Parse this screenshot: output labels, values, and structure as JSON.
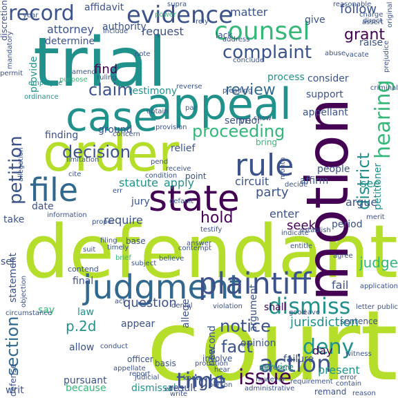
{
  "palette": {
    "purple": "#440154",
    "indigo": "#3b528b",
    "blue": "#31688e",
    "teal": "#21918c",
    "green": "#35b779",
    "lime": "#b5de2b"
  },
  "words": [
    {
      "text": "court",
      "color": "lime",
      "vertical": false
    },
    {
      "text": "defendant",
      "color": "lime",
      "vertical": false
    },
    {
      "text": "motion",
      "color": "purple",
      "vertical": true
    },
    {
      "text": "trial",
      "color": "teal",
      "vertical": false
    },
    {
      "text": "order",
      "color": "lime",
      "vertical": false
    },
    {
      "text": "appeal",
      "color": "teal",
      "vertical": false
    },
    {
      "text": "case",
      "color": "teal",
      "vertical": false
    },
    {
      "text": "judgment",
      "color": "blue",
      "vertical": false
    },
    {
      "text": "state",
      "color": "purple",
      "vertical": false
    },
    {
      "text": "file",
      "color": "blue",
      "vertical": false
    },
    {
      "text": "plaintiff",
      "color": "indigo",
      "vertical": false
    },
    {
      "text": "counsel",
      "color": "green",
      "vertical": false
    },
    {
      "text": "rule",
      "color": "indigo",
      "vertical": false
    },
    {
      "text": "evidence",
      "color": "indigo",
      "vertical": false
    },
    {
      "text": "hearing",
      "color": "green",
      "vertical": true
    },
    {
      "text": "record",
      "color": "indigo",
      "vertical": false
    },
    {
      "text": "petition",
      "color": "indigo",
      "vertical": true
    },
    {
      "text": "action",
      "color": "indigo",
      "vertical": false
    },
    {
      "text": "section",
      "color": "blue",
      "vertical": true
    },
    {
      "text": "dismiss",
      "color": "teal",
      "vertical": false
    },
    {
      "text": "issue",
      "color": "purple",
      "vertical": false
    },
    {
      "text": "time",
      "color": "indigo",
      "vertical": false
    },
    {
      "text": "deny",
      "color": "teal",
      "vertical": false
    },
    {
      "text": "complaint",
      "color": "indigo",
      "vertical": false
    },
    {
      "text": "district",
      "color": "teal",
      "vertical": true
    },
    {
      "text": "proceeding",
      "color": "green",
      "vertical": false
    },
    {
      "text": "decision",
      "color": "indigo",
      "vertical": false
    },
    {
      "text": "review",
      "color": "blue",
      "vertical": false
    },
    {
      "text": "claim",
      "color": "indigo",
      "vertical": false
    },
    {
      "text": "right",
      "color": "indigo",
      "vertical": false
    },
    {
      "text": "notice",
      "color": "indigo",
      "vertical": false
    },
    {
      "text": "fact",
      "color": "indigo",
      "vertical": false
    },
    {
      "text": "grant",
      "color": "purple",
      "vertical": false
    },
    {
      "text": "follow",
      "color": "indigo",
      "vertical": false
    },
    {
      "text": "party",
      "color": "indigo",
      "vertical": false
    },
    {
      "text": "hold",
      "color": "purple",
      "vertical": false
    },
    {
      "text": "question",
      "color": "indigo",
      "vertical": false
    },
    {
      "text": "jurisdiction",
      "color": "teal",
      "vertical": false
    },
    {
      "text": "matter",
      "color": "indigo",
      "vertical": false
    },
    {
      "text": "attorney",
      "color": "indigo",
      "vertical": false
    },
    {
      "text": "request",
      "color": "indigo",
      "vertical": false
    },
    {
      "text": "find",
      "color": "purple",
      "vertical": false
    },
    {
      "text": "statute",
      "color": "teal",
      "vertical": false
    },
    {
      "text": "apply",
      "color": "teal",
      "vertical": false
    },
    {
      "text": "circuit",
      "color": "indigo",
      "vertical": false
    },
    {
      "text": "see",
      "color": "teal",
      "vertical": false
    },
    {
      "text": "argue",
      "color": "indigo",
      "vertical": false
    },
    {
      "text": "enter",
      "color": "indigo",
      "vertical": false
    },
    {
      "text": "seek",
      "color": "purple",
      "vertical": false
    },
    {
      "text": "require",
      "color": "indigo",
      "vertical": false
    },
    {
      "text": "fail",
      "color": "indigo",
      "vertical": false
    },
    {
      "text": "present",
      "color": "teal",
      "vertical": false
    },
    {
      "text": "failure",
      "color": "indigo",
      "vertical": false
    },
    {
      "text": "p.2d",
      "color": "teal",
      "vertical": false
    },
    {
      "text": "allow",
      "color": "indigo",
      "vertical": false
    },
    {
      "text": "pursuant",
      "color": "indigo",
      "vertical": false
    },
    {
      "text": "because",
      "color": "green",
      "vertical": false
    },
    {
      "text": "dismissal",
      "color": "teal",
      "vertical": false
    },
    {
      "text": "result",
      "color": "indigo",
      "vertical": false
    },
    {
      "text": "opinion",
      "color": "indigo",
      "vertical": false
    },
    {
      "text": "day",
      "color": "purple",
      "vertical": false
    },
    {
      "text": "argument",
      "color": "indigo",
      "vertical": true
    },
    {
      "text": "shall",
      "color": "purple",
      "vertical": false
    },
    {
      "text": "service",
      "color": "green",
      "vertical": false
    },
    {
      "text": "support",
      "color": "indigo",
      "vertical": false
    },
    {
      "text": "appellant",
      "color": "indigo",
      "vertical": false
    },
    {
      "text": "process",
      "color": "teal",
      "vertical": false
    },
    {
      "text": "provide",
      "color": "teal",
      "vertical": true
    },
    {
      "text": "statement",
      "color": "indigo",
      "vertical": true
    },
    {
      "text": "set",
      "color": "indigo",
      "vertical": false
    },
    {
      "text": "say",
      "color": "green",
      "vertical": false
    },
    {
      "text": "appear",
      "color": "indigo",
      "vertical": false
    },
    {
      "text": "final",
      "color": "indigo",
      "vertical": false
    },
    {
      "text": "law",
      "color": "teal",
      "vertical": false
    },
    {
      "text": "date",
      "color": "indigo",
      "vertical": false
    },
    {
      "text": "period",
      "color": "indigo",
      "vertical": false
    },
    {
      "text": "take",
      "color": "indigo",
      "vertical": false
    },
    {
      "text": "jury",
      "color": "indigo",
      "vertical": false
    },
    {
      "text": "petitioner",
      "color": "teal",
      "vertical": true
    },
    {
      "text": "judge",
      "color": "green",
      "vertical": false
    },
    {
      "text": "raise",
      "color": "indigo",
      "vertical": false
    },
    {
      "text": "ground",
      "color": "indigo",
      "vertical": false
    },
    {
      "text": "relief",
      "color": "indigo",
      "vertical": false
    },
    {
      "text": "serve",
      "color": "indigo",
      "vertical": false
    },
    {
      "text": "prior",
      "color": "indigo",
      "vertical": false
    },
    {
      "text": "people",
      "color": "indigo",
      "vertical": false
    },
    {
      "text": "affirm",
      "color": "indigo",
      "vertical": false
    },
    {
      "text": "consider",
      "color": "indigo",
      "vertical": false
    },
    {
      "text": "authority",
      "color": "indigo",
      "vertical": false
    },
    {
      "text": "determine",
      "color": "indigo",
      "vertical": false
    },
    {
      "text": "give",
      "color": "indigo",
      "vertical": false
    },
    {
      "text": "affidavit",
      "color": "indigo",
      "vertical": false
    },
    {
      "text": "discretion",
      "color": "indigo",
      "vertical": true
    },
    {
      "text": "writ",
      "color": "indigo",
      "vertical": false
    },
    {
      "text": "defense",
      "color": "indigo",
      "vertical": true
    },
    {
      "text": "finding",
      "color": "indigo",
      "vertical": false
    },
    {
      "text": "base",
      "color": "indigo",
      "vertical": false
    },
    {
      "text": "testimony",
      "color": "teal",
      "vertical": false
    },
    {
      "text": "conduct",
      "color": "indigo",
      "vertical": false
    },
    {
      "text": "contend",
      "color": "indigo",
      "vertical": false
    },
    {
      "text": "remand",
      "color": "indigo",
      "vertical": false
    },
    {
      "text": "sentence",
      "color": "indigo",
      "vertical": false
    },
    {
      "text": "allege",
      "color": "indigo",
      "vertical": true
    },
    {
      "text": "second",
      "color": "indigo",
      "vertical": true
    },
    {
      "text": "new",
      "color": "indigo",
      "vertical": true
    },
    {
      "text": "point",
      "color": "indigo",
      "vertical": false
    },
    {
      "text": "basis",
      "color": "indigo",
      "vertical": false
    },
    {
      "text": "officer",
      "color": "indigo",
      "vertical": false
    },
    {
      "text": "agree",
      "color": "indigo",
      "vertical": false
    },
    {
      "text": "good",
      "color": "indigo",
      "vertical": false
    },
    {
      "text": "leave",
      "color": "indigo",
      "vertical": false
    },
    {
      "text": "involve",
      "color": "indigo",
      "vertical": false
    },
    {
      "text": "bring",
      "color": "green",
      "vertical": false
    },
    {
      "text": "brief",
      "color": "green",
      "vertical": false
    },
    {
      "text": "timely",
      "color": "indigo",
      "vertical": false
    },
    {
      "text": "subject",
      "color": "indigo",
      "vertical": false
    },
    {
      "text": "believe",
      "color": "indigo",
      "vertical": false
    },
    {
      "text": "answer",
      "color": "indigo",
      "vertical": false
    },
    {
      "text": "permit",
      "color": "indigo",
      "vertical": false
    },
    {
      "text": "note",
      "color": "indigo",
      "vertical": false
    },
    {
      "text": "amend",
      "color": "indigo",
      "vertical": false
    },
    {
      "text": "ruling",
      "color": "indigo",
      "vertical": false
    },
    {
      "text": "abuse",
      "color": "indigo",
      "vertical": false
    },
    {
      "text": "supra",
      "color": "indigo",
      "vertical": false
    },
    {
      "text": "lack",
      "color": "indigo",
      "vertical": false
    },
    {
      "text": "rely",
      "color": "indigo",
      "vertical": false
    },
    {
      "text": "address",
      "color": "indigo",
      "vertical": false
    },
    {
      "text": "conclude",
      "color": "indigo",
      "vertical": false
    },
    {
      "text": "charge",
      "color": "indigo",
      "vertical": false
    },
    {
      "text": "direct",
      "color": "indigo",
      "vertical": false
    },
    {
      "text": "assert",
      "color": "indigo",
      "vertical": false
    },
    {
      "text": "vacate",
      "color": "indigo",
      "vertical": false
    },
    {
      "text": "reasonable",
      "color": "indigo",
      "vertical": false
    },
    {
      "text": "year",
      "color": "indigo",
      "vertical": false
    },
    {
      "text": "power",
      "color": "green",
      "vertical": false
    },
    {
      "text": "include",
      "color": "indigo",
      "vertical": false
    },
    {
      "text": "purpose",
      "color": "green",
      "vertical": false
    },
    {
      "text": "employee",
      "color": "teal",
      "vertical": false
    },
    {
      "text": "ordinance",
      "color": "teal",
      "vertical": false
    },
    {
      "text": "pleading",
      "color": "indigo",
      "vertical": false
    },
    {
      "text": "reverse",
      "color": "indigo",
      "vertical": false
    },
    {
      "text": "show",
      "color": "indigo",
      "vertical": false
    },
    {
      "text": "obtain",
      "color": "indigo",
      "vertical": false
    },
    {
      "text": "provision",
      "color": "indigo",
      "vertical": false
    },
    {
      "text": "concern",
      "color": "indigo",
      "vertical": false
    },
    {
      "text": "limitation",
      "color": "indigo",
      "vertical": false
    },
    {
      "text": "cite",
      "color": "indigo",
      "vertical": false
    },
    {
      "text": "pend",
      "color": "indigo",
      "vertical": false
    },
    {
      "text": "condition",
      "color": "indigo",
      "vertical": false
    },
    {
      "text": "err",
      "color": "indigo",
      "vertical": false
    },
    {
      "text": "receive",
      "color": "indigo",
      "vertical": false
    },
    {
      "text": "default",
      "color": "indigo",
      "vertical": false
    },
    {
      "text": "decide",
      "color": "indigo",
      "vertical": false
    },
    {
      "text": "merit",
      "color": "indigo",
      "vertical": false
    },
    {
      "text": "indicate",
      "color": "indigo",
      "vertical": false
    },
    {
      "text": "information",
      "color": "indigo",
      "vertical": false
    },
    {
      "text": "filing",
      "color": "indigo",
      "vertical": false
    },
    {
      "text": "testify",
      "color": "indigo",
      "vertical": false
    },
    {
      "text": "entitle",
      "color": "indigo",
      "vertical": false
    },
    {
      "text": "establish",
      "color": "indigo",
      "vertical": false
    },
    {
      "text": "proper",
      "color": "indigo",
      "vertical": false
    },
    {
      "text": "suit",
      "color": "indigo",
      "vertical": false
    },
    {
      "text": "contempt",
      "color": "indigo",
      "vertical": false
    },
    {
      "text": "act",
      "color": "indigo",
      "vertical": false
    },
    {
      "text": "denial",
      "color": "indigo",
      "vertical": false
    },
    {
      "text": "violation",
      "color": "indigo",
      "vertical": false
    },
    {
      "text": "public",
      "color": "indigo",
      "vertical": false
    },
    {
      "text": "application",
      "color": "indigo",
      "vertical": false
    },
    {
      "text": "letter",
      "color": "indigo",
      "vertical": false
    },
    {
      "text": "circumstance",
      "color": "indigo",
      "vertical": false
    },
    {
      "text": "represent",
      "color": "indigo",
      "vertical": false
    },
    {
      "text": "probation",
      "color": "indigo",
      "vertical": false
    },
    {
      "text": "appellate",
      "color": "indigo",
      "vertical": false
    },
    {
      "text": "report",
      "color": "indigo",
      "vertical": false
    },
    {
      "text": "know",
      "color": "indigo",
      "vertical": false
    },
    {
      "text": "person",
      "color": "indigo",
      "vertical": false
    },
    {
      "text": "administrative",
      "color": "indigo",
      "vertical": false
    },
    {
      "text": "requirement",
      "color": "indigo",
      "vertical": false
    },
    {
      "text": "effect",
      "color": "indigo",
      "vertical": false
    },
    {
      "text": "write",
      "color": "indigo",
      "vertical": false
    },
    {
      "text": "contain",
      "color": "indigo",
      "vertical": false
    },
    {
      "text": "error",
      "color": "indigo",
      "vertical": false
    },
    {
      "text": "witness",
      "color": "indigo",
      "vertical": false
    },
    {
      "text": "reason",
      "color": "indigo",
      "vertical": false
    },
    {
      "text": "however",
      "color": "indigo",
      "vertical": false
    },
    {
      "text": "hear",
      "color": "indigo",
      "vertical": false
    },
    {
      "text": "judicial",
      "color": "indigo",
      "vertical": false
    },
    {
      "text": "criminal",
      "color": "indigo",
      "vertical": false
    },
    {
      "text": "prejudice",
      "color": "indigo",
      "vertical": true
    },
    {
      "text": "original",
      "color": "indigo",
      "vertical": true
    },
    {
      "text": "month",
      "color": "indigo",
      "vertical": true
    },
    {
      "text": "mandatory",
      "color": "indigo",
      "vertical": true
    },
    {
      "text": "allegation",
      "color": "indigo",
      "vertical": true
    },
    {
      "text": "objection",
      "color": "indigo",
      "vertical": true
    },
    {
      "text": "par",
      "color": "indigo",
      "vertical": false
    }
  ]
}
